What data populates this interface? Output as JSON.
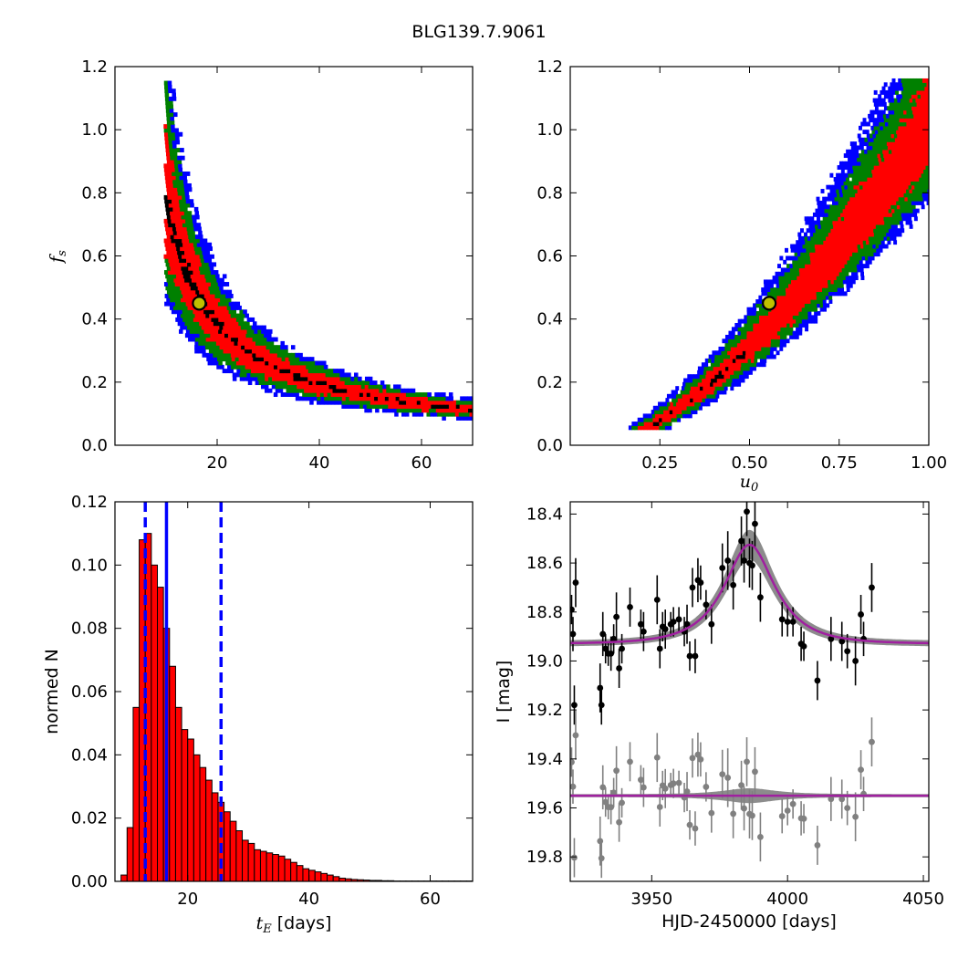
{
  "title": "BLG139.7.9061",
  "colors": {
    "sigma1": "#ff0000",
    "sigma2": "#008000",
    "sigma3": "#0000ff",
    "best": "#000000",
    "marker_fill": "#c0c000",
    "hist_fill": "#ff0000",
    "vline": "#0000ff",
    "model": "#a020a0",
    "band": "#808080",
    "data": "#000000",
    "resid": "#808080"
  },
  "chart_data": [
    {
      "id": "fs_vs_tE",
      "type": "heatmap",
      "xlabel": "",
      "ylabel": "f_s",
      "xlim": [
        0,
        70
      ],
      "ylim": [
        0,
        1.2
      ],
      "xticks": [
        "20",
        "40",
        "60"
      ],
      "yticks": [
        "0.0",
        "0.2",
        "0.4",
        "0.6",
        "0.8",
        "1.0",
        "1.2"
      ],
      "relation": "f_s = 7.5 / t_E",
      "best_fit": {
        "x": 16.5,
        "y": 0.45
      },
      "levels": [
        "best",
        "1-sigma",
        "2-sigma",
        "3-sigma"
      ]
    },
    {
      "id": "fs_vs_u0",
      "type": "heatmap",
      "xlabel": "u_0",
      "ylabel": "",
      "xlim": [
        0,
        1.0
      ],
      "ylim": [
        0,
        1.2
      ],
      "xticks": [
        "0.25",
        "0.50",
        "0.75",
        "1.00"
      ],
      "yticks": [
        "0.0",
        "0.2",
        "0.4",
        "0.6",
        "0.8",
        "1.0",
        "1.2"
      ],
      "best_fit": {
        "x": 0.555,
        "y": 0.45
      },
      "levels": [
        "best",
        "1-sigma",
        "2-sigma",
        "3-sigma"
      ]
    },
    {
      "id": "tE_histogram",
      "type": "bar",
      "xlabel": "t_E  [days]",
      "ylabel": "normed N",
      "xlim": [
        8,
        67
      ],
      "ylim": [
        0,
        0.12
      ],
      "xticks": [
        "20",
        "40",
        "60"
      ],
      "yticks": [
        "0.00",
        "0.02",
        "0.04",
        "0.06",
        "0.08",
        "0.10",
        "0.12"
      ],
      "bin_start": 9,
      "bin_width": 1,
      "values": [
        0.002,
        0.017,
        0.055,
        0.108,
        0.11,
        0.1,
        0.093,
        0.08,
        0.068,
        0.055,
        0.048,
        0.045,
        0.04,
        0.036,
        0.032,
        0.028,
        0.025,
        0.022,
        0.019,
        0.016,
        0.013,
        0.012,
        0.01,
        0.0095,
        0.009,
        0.0085,
        0.008,
        0.007,
        0.006,
        0.005,
        0.004,
        0.0035,
        0.003,
        0.0025,
        0.002,
        0.0015,
        0.001,
        0.0008,
        0.0006,
        0.0005,
        0.0004,
        0.0003,
        0.0003,
        0.0002,
        0.0002,
        0.0001,
        0.0001,
        0.0001,
        0.0001,
        0.0001,
        0.0001,
        0.0001,
        0.0001,
        0.0001,
        0.0001,
        0.0001,
        0.0001,
        0.0001
      ],
      "best_fit_line": 16.5,
      "bounds_lines": [
        13.0,
        25.5
      ]
    },
    {
      "id": "light_curve",
      "type": "scatter",
      "xlabel": "HJD-2450000 [days]",
      "ylabel": "I [mag]",
      "xlim": [
        3920,
        4052
      ],
      "ylim": [
        19.9,
        18.35
      ],
      "xticks": [
        "3950",
        "4000",
        "4050"
      ],
      "yticks": [
        "18.4",
        "18.6",
        "18.8",
        "19.0",
        "19.2",
        "19.4",
        "19.6",
        "19.8"
      ],
      "model": {
        "t0": 3986,
        "tE": 16.5,
        "u0": 0.555,
        "fs": 0.45,
        "baseline": 18.93
      },
      "residual_offset": 19.55,
      "points": [
        [
          3920.5,
          18.79,
          0.06
        ],
        [
          3921,
          18.89,
          0.07
        ],
        [
          3921.5,
          19.18,
          0.08
        ],
        [
          3922,
          18.68,
          0.1
        ],
        [
          3931,
          19.11,
          0.1
        ],
        [
          3931.5,
          19.18,
          0.08
        ],
        [
          3932,
          18.89,
          0.09
        ],
        [
          3933,
          18.95,
          0.06
        ],
        [
          3934,
          18.97,
          0.05
        ],
        [
          3935,
          18.97,
          0.07
        ],
        [
          3936,
          18.91,
          0.06
        ],
        [
          3937,
          18.82,
          0.1
        ],
        [
          3938,
          19.03,
          0.08
        ],
        [
          3939,
          18.95,
          0.06
        ],
        [
          3942,
          18.78,
          0.08
        ],
        [
          3946,
          18.85,
          0.06
        ],
        [
          3947,
          18.88,
          0.08
        ],
        [
          3952,
          18.75,
          0.1
        ],
        [
          3953,
          18.95,
          0.08
        ],
        [
          3954,
          18.86,
          0.06
        ],
        [
          3955,
          18.87,
          0.08
        ],
        [
          3957,
          18.85,
          0.05
        ],
        [
          3958,
          18.84,
          0.06
        ],
        [
          3960,
          18.83,
          0.05
        ],
        [
          3962,
          18.88,
          0.06
        ],
        [
          3963,
          18.85,
          0.08
        ],
        [
          3964,
          18.98,
          0.06
        ],
        [
          3965,
          18.7,
          0.08
        ],
        [
          3966,
          18.98,
          0.07
        ],
        [
          3967,
          18.67,
          0.09
        ],
        [
          3968,
          18.68,
          0.07
        ],
        [
          3970,
          18.77,
          0.06
        ],
        [
          3972,
          18.85,
          0.08
        ],
        [
          3976,
          18.62,
          0.1
        ],
        [
          3978,
          18.59,
          0.12
        ],
        [
          3980,
          18.69,
          0.1
        ],
        [
          3983,
          18.51,
          0.1
        ],
        [
          3984,
          18.59,
          0.09
        ],
        [
          3985,
          18.39,
          0.1
        ],
        [
          3986,
          18.6,
          0.1
        ],
        [
          3987,
          18.61,
          0.1
        ],
        [
          3988,
          18.44,
          0.1
        ],
        [
          3990,
          18.74,
          0.1
        ],
        [
          3998,
          18.83,
          0.07
        ],
        [
          4000,
          18.84,
          0.06
        ],
        [
          4002,
          18.84,
          0.06
        ],
        [
          4005,
          18.93,
          0.07
        ],
        [
          4006,
          18.94,
          0.06
        ],
        [
          4011,
          19.08,
          0.08
        ],
        [
          4016,
          18.91,
          0.09
        ],
        [
          4020,
          18.92,
          0.08
        ],
        [
          4022,
          18.96,
          0.07
        ],
        [
          4025,
          19.0,
          0.1
        ],
        [
          4027,
          18.81,
          0.08
        ],
        [
          4028,
          18.91,
          0.07
        ],
        [
          4031,
          18.7,
          0.1
        ]
      ]
    }
  ]
}
